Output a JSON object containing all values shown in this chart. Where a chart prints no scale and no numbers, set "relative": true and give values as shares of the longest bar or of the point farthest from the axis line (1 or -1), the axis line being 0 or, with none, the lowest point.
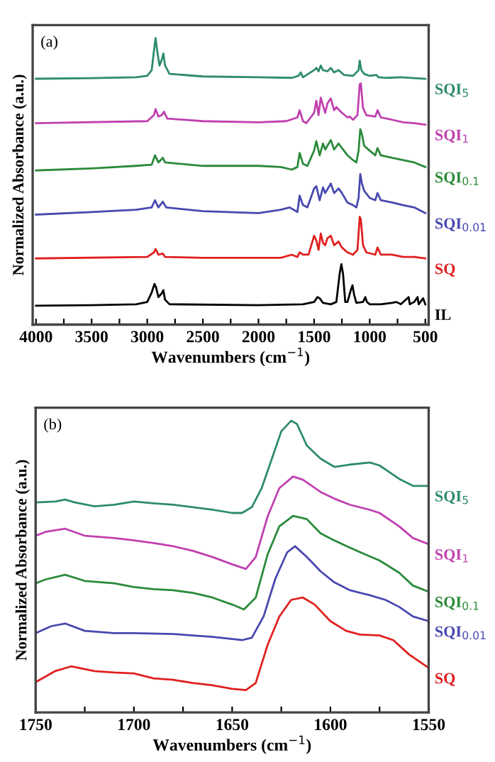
{
  "chart_data": [
    {
      "type": "line",
      "relative": true,
      "xlabel": "Wavenumbers (cm$^{−1}$)",
      "ylabel": "Normalized Absorbance (a.u.)",
      "annotations": [
        "(a)"
      ],
      "tick_labels": "x",
      "xlim": [
        4030,
        470
      ],
      "xticks": [
        4000,
        {
          "value": 3750,
          "label": null
        },
        3500,
        {
          "value": 3250,
          "label": null
        },
        3000,
        {
          "value": 2750,
          "label": null
        },
        2500,
        {
          "value": 2250,
          "label": null
        },
        2000,
        {
          "value": 1750,
          "label": null
        },
        1500,
        {
          "value": 1250,
          "label": null
        },
        1000,
        {
          "value": 750,
          "label": null
        },
        500
      ],
      "series": [
        {
          "name": "SQI$_{5}$",
          "color": "#2e8b6e",
          "x": [
            4000,
            3500,
            3100,
            3000,
            2960,
            2935,
            2925,
            2910,
            2890,
            2870,
            2855,
            2840,
            2800,
            2500,
            2000,
            1700,
            1640,
            1620,
            1600,
            1500,
            1480,
            1460,
            1440,
            1420,
            1380,
            1350,
            1320,
            1280,
            1230,
            1150,
            1100,
            1090,
            1075,
            1050,
            1000,
            940,
            920,
            850,
            720,
            600,
            500
          ],
          "values": [
            0.858,
            0.86,
            0.863,
            0.868,
            0.888,
            0.97,
            1.0,
            0.954,
            0.904,
            0.924,
            0.946,
            0.904,
            0.875,
            0.866,
            0.863,
            0.861,
            0.868,
            0.88,
            0.863,
            0.888,
            0.896,
            0.884,
            0.904,
            0.888,
            0.884,
            0.896,
            0.88,
            0.888,
            0.871,
            0.868,
            0.888,
            0.921,
            0.888,
            0.875,
            0.868,
            0.871,
            0.863,
            0.861,
            0.863,
            0.86,
            0.858
          ]
        },
        {
          "name": "SQI$_{1}$",
          "color": "#c040b0",
          "x": [
            4000,
            3000,
            2940,
            2925,
            2900,
            2870,
            2850,
            2820,
            2500,
            2000,
            1750,
            1650,
            1630,
            1600,
            1570,
            1500,
            1480,
            1460,
            1440,
            1420,
            1400,
            1380,
            1350,
            1320,
            1300,
            1250,
            1200,
            1180,
            1150,
            1110,
            1090,
            1080,
            1060,
            1030,
            950,
            930,
            900,
            800,
            700,
            600,
            500
          ],
          "values": [
            0.703,
            0.71,
            0.731,
            0.752,
            0.726,
            0.731,
            0.743,
            0.719,
            0.71,
            0.706,
            0.71,
            0.723,
            0.748,
            0.71,
            0.703,
            0.739,
            0.781,
            0.731,
            0.792,
            0.764,
            0.739,
            0.772,
            0.789,
            0.748,
            0.759,
            0.739,
            0.723,
            0.726,
            0.715,
            0.731,
            0.838,
            0.842,
            0.756,
            0.731,
            0.726,
            0.748,
            0.723,
            0.715,
            0.706,
            0.703,
            0.698
          ]
        },
        {
          "name": "SQI$_{0.1}$",
          "color": "#2a8a3a",
          "x": [
            4000,
            3500,
            3100,
            2960,
            2930,
            2900,
            2860,
            2840,
            2500,
            2000,
            1800,
            1700,
            1650,
            1630,
            1600,
            1560,
            1500,
            1480,
            1450,
            1420,
            1400,
            1350,
            1320,
            1280,
            1250,
            1200,
            1150,
            1120,
            1100,
            1085,
            1070,
            1050,
            1000,
            950,
            930,
            900,
            800,
            700,
            600,
            500
          ],
          "values": [
            0.538,
            0.545,
            0.554,
            0.558,
            0.591,
            0.566,
            0.582,
            0.566,
            0.554,
            0.554,
            0.55,
            0.541,
            0.55,
            0.599,
            0.561,
            0.554,
            0.607,
            0.64,
            0.591,
            0.632,
            0.611,
            0.644,
            0.611,
            0.632,
            0.616,
            0.591,
            0.574,
            0.566,
            0.607,
            0.682,
            0.665,
            0.624,
            0.607,
            0.591,
            0.616,
            0.591,
            0.582,
            0.574,
            0.566,
            0.55
          ]
        },
        {
          "name": "SQI$_{0.01}$",
          "color": "#4848b0",
          "x": [
            4000,
            3500,
            3100,
            2960,
            2930,
            2900,
            2860,
            2830,
            2500,
            2000,
            1800,
            1720,
            1650,
            1630,
            1600,
            1560,
            1500,
            1480,
            1450,
            1420,
            1400,
            1350,
            1320,
            1280,
            1250,
            1200,
            1150,
            1120,
            1100,
            1085,
            1070,
            1050,
            1000,
            950,
            930,
            900,
            800,
            700,
            600,
            500
          ],
          "values": [
            0.384,
            0.393,
            0.401,
            0.409,
            0.434,
            0.409,
            0.429,
            0.409,
            0.396,
            0.389,
            0.401,
            0.409,
            0.393,
            0.45,
            0.417,
            0.409,
            0.475,
            0.483,
            0.434,
            0.479,
            0.459,
            0.492,
            0.459,
            0.475,
            0.459,
            0.426,
            0.417,
            0.409,
            0.442,
            0.525,
            0.492,
            0.467,
            0.442,
            0.434,
            0.459,
            0.434,
            0.426,
            0.417,
            0.409,
            0.389
          ]
        },
        {
          "name": "SQ",
          "color": "#e02020",
          "x": [
            4000,
            3000,
            2940,
            2925,
            2900,
            2860,
            2840,
            2500,
            2000,
            1800,
            1700,
            1650,
            1630,
            1600,
            1550,
            1500,
            1480,
            1460,
            1440,
            1420,
            1400,
            1380,
            1350,
            1320,
            1280,
            1250,
            1200,
            1150,
            1110,
            1090,
            1080,
            1060,
            1030,
            950,
            930,
            900,
            800,
            700,
            600,
            500
          ],
          "values": [
            0.231,
            0.236,
            0.252,
            0.264,
            0.244,
            0.248,
            0.236,
            0.233,
            0.233,
            0.233,
            0.244,
            0.236,
            0.252,
            0.244,
            0.244,
            0.31,
            0.294,
            0.261,
            0.318,
            0.285,
            0.277,
            0.302,
            0.31,
            0.277,
            0.29,
            0.269,
            0.252,
            0.244,
            0.261,
            0.376,
            0.368,
            0.277,
            0.252,
            0.244,
            0.269,
            0.244,
            0.244,
            0.236,
            0.236,
            0.231
          ]
        },
        {
          "name": "IL",
          "color": "#000000",
          "x": [
            4000,
            3500,
            3100,
            3000,
            2960,
            2935,
            2920,
            2900,
            2870,
            2855,
            2840,
            2800,
            2000,
            1600,
            1500,
            1470,
            1450,
            1420,
            1350,
            1300,
            1270,
            1255,
            1240,
            1220,
            1200,
            1170,
            1155,
            1140,
            1120,
            1060,
            1040,
            1025,
            1000,
            900,
            800,
            760,
            720,
            650,
            640,
            600,
            570,
            560,
            520,
            500
          ],
          "values": [
            0.066,
            0.068,
            0.071,
            0.079,
            0.112,
            0.142,
            0.129,
            0.096,
            0.109,
            0.12,
            0.087,
            0.071,
            0.068,
            0.071,
            0.079,
            0.096,
            0.092,
            0.076,
            0.071,
            0.079,
            0.178,
            0.211,
            0.178,
            0.079,
            0.079,
            0.12,
            0.137,
            0.104,
            0.076,
            0.079,
            0.096,
            0.079,
            0.071,
            0.071,
            0.076,
            0.079,
            0.071,
            0.096,
            0.071,
            0.079,
            0.096,
            0.071,
            0.092,
            0.071
          ]
        }
      ]
    },
    {
      "type": "line",
      "relative": true,
      "xlabel": "Wavenumbers (cm$^{−1}$)",
      "ylabel": "Normalized Absorbance (a.u.)",
      "annotations": [
        "(b)"
      ],
      "tick_labels": "x",
      "xlim": [
        1750,
        1550
      ],
      "xticks": [
        1750,
        {
          "value": 1725,
          "label": null
        },
        1700,
        {
          "value": 1675,
          "label": null
        },
        1650,
        {
          "value": 1625,
          "label": null
        },
        1600,
        {
          "value": 1575,
          "label": null
        },
        1550
      ],
      "series": [
        {
          "name": "SQI$_{5}$",
          "color": "#2e8b6e",
          "x": [
            1750,
            1740,
            1735,
            1730,
            1720,
            1710,
            1700,
            1690,
            1680,
            1670,
            1660,
            1650,
            1645,
            1640,
            1635,
            1630,
            1625,
            1620,
            1617,
            1612,
            1605,
            1598,
            1590,
            1580,
            1575,
            1565,
            1558,
            1550
          ],
          "values": [
            0.72,
            0.723,
            0.73,
            0.72,
            0.707,
            0.712,
            0.723,
            0.717,
            0.712,
            0.704,
            0.695,
            0.684,
            0.684,
            0.704,
            0.769,
            0.866,
            0.964,
            1.0,
            0.989,
            0.915,
            0.87,
            0.842,
            0.85,
            0.857,
            0.847,
            0.801,
            0.777,
            0.777
          ]
        },
        {
          "name": "SQI$_{1}$",
          "color": "#c040b0",
          "x": [
            1750,
            1745,
            1735,
            1725,
            1710,
            1700,
            1690,
            1680,
            1670,
            1660,
            1650,
            1643,
            1638,
            1632,
            1626,
            1619,
            1614,
            1605,
            1598,
            1590,
            1580,
            1575,
            1565,
            1558,
            1550
          ],
          "values": [
            0.606,
            0.619,
            0.63,
            0.606,
            0.598,
            0.59,
            0.581,
            0.57,
            0.554,
            0.533,
            0.508,
            0.492,
            0.533,
            0.671,
            0.769,
            0.809,
            0.798,
            0.756,
            0.733,
            0.712,
            0.695,
            0.684,
            0.638,
            0.598,
            0.577
          ]
        },
        {
          "name": "SQI$_{0.1}$",
          "color": "#2a8a3a",
          "x": [
            1750,
            1745,
            1735,
            1725,
            1710,
            1700,
            1690,
            1680,
            1670,
            1660,
            1650,
            1644,
            1638,
            1632,
            1626,
            1619,
            1612,
            1605,
            1598,
            1590,
            1582,
            1575,
            1565,
            1558,
            1550
          ],
          "values": [
            0.443,
            0.456,
            0.472,
            0.451,
            0.443,
            0.43,
            0.423,
            0.419,
            0.41,
            0.394,
            0.37,
            0.353,
            0.394,
            0.541,
            0.638,
            0.674,
            0.663,
            0.614,
            0.59,
            0.565,
            0.541,
            0.521,
            0.479,
            0.435,
            0.414
          ]
        },
        {
          "name": "SQI$_{0.01}$",
          "color": "#4848b0",
          "x": [
            1750,
            1742,
            1735,
            1725,
            1710,
            1700,
            1680,
            1660,
            1645,
            1640,
            1634,
            1628,
            1622,
            1618,
            1612,
            1605,
            1598,
            1590,
            1580,
            1572,
            1565,
            1558,
            1550
          ],
          "values": [
            0.272,
            0.296,
            0.305,
            0.28,
            0.272,
            0.272,
            0.269,
            0.259,
            0.248,
            0.256,
            0.329,
            0.459,
            0.549,
            0.57,
            0.533,
            0.484,
            0.446,
            0.419,
            0.402,
            0.386,
            0.362,
            0.329,
            0.313
          ]
        },
        {
          "name": "SQ",
          "color": "#e02020",
          "x": [
            1750,
            1740,
            1732,
            1720,
            1710,
            1700,
            1690,
            1680,
            1670,
            1660,
            1650,
            1643,
            1638,
            1632,
            1626,
            1620,
            1614,
            1608,
            1600,
            1592,
            1585,
            1575,
            1568,
            1560,
            1550
          ],
          "values": [
            0.104,
            0.142,
            0.158,
            0.142,
            0.137,
            0.134,
            0.117,
            0.112,
            0.101,
            0.093,
            0.081,
            0.077,
            0.101,
            0.231,
            0.329,
            0.386,
            0.394,
            0.37,
            0.313,
            0.28,
            0.267,
            0.264,
            0.248,
            0.199,
            0.153
          ]
        }
      ]
    }
  ]
}
